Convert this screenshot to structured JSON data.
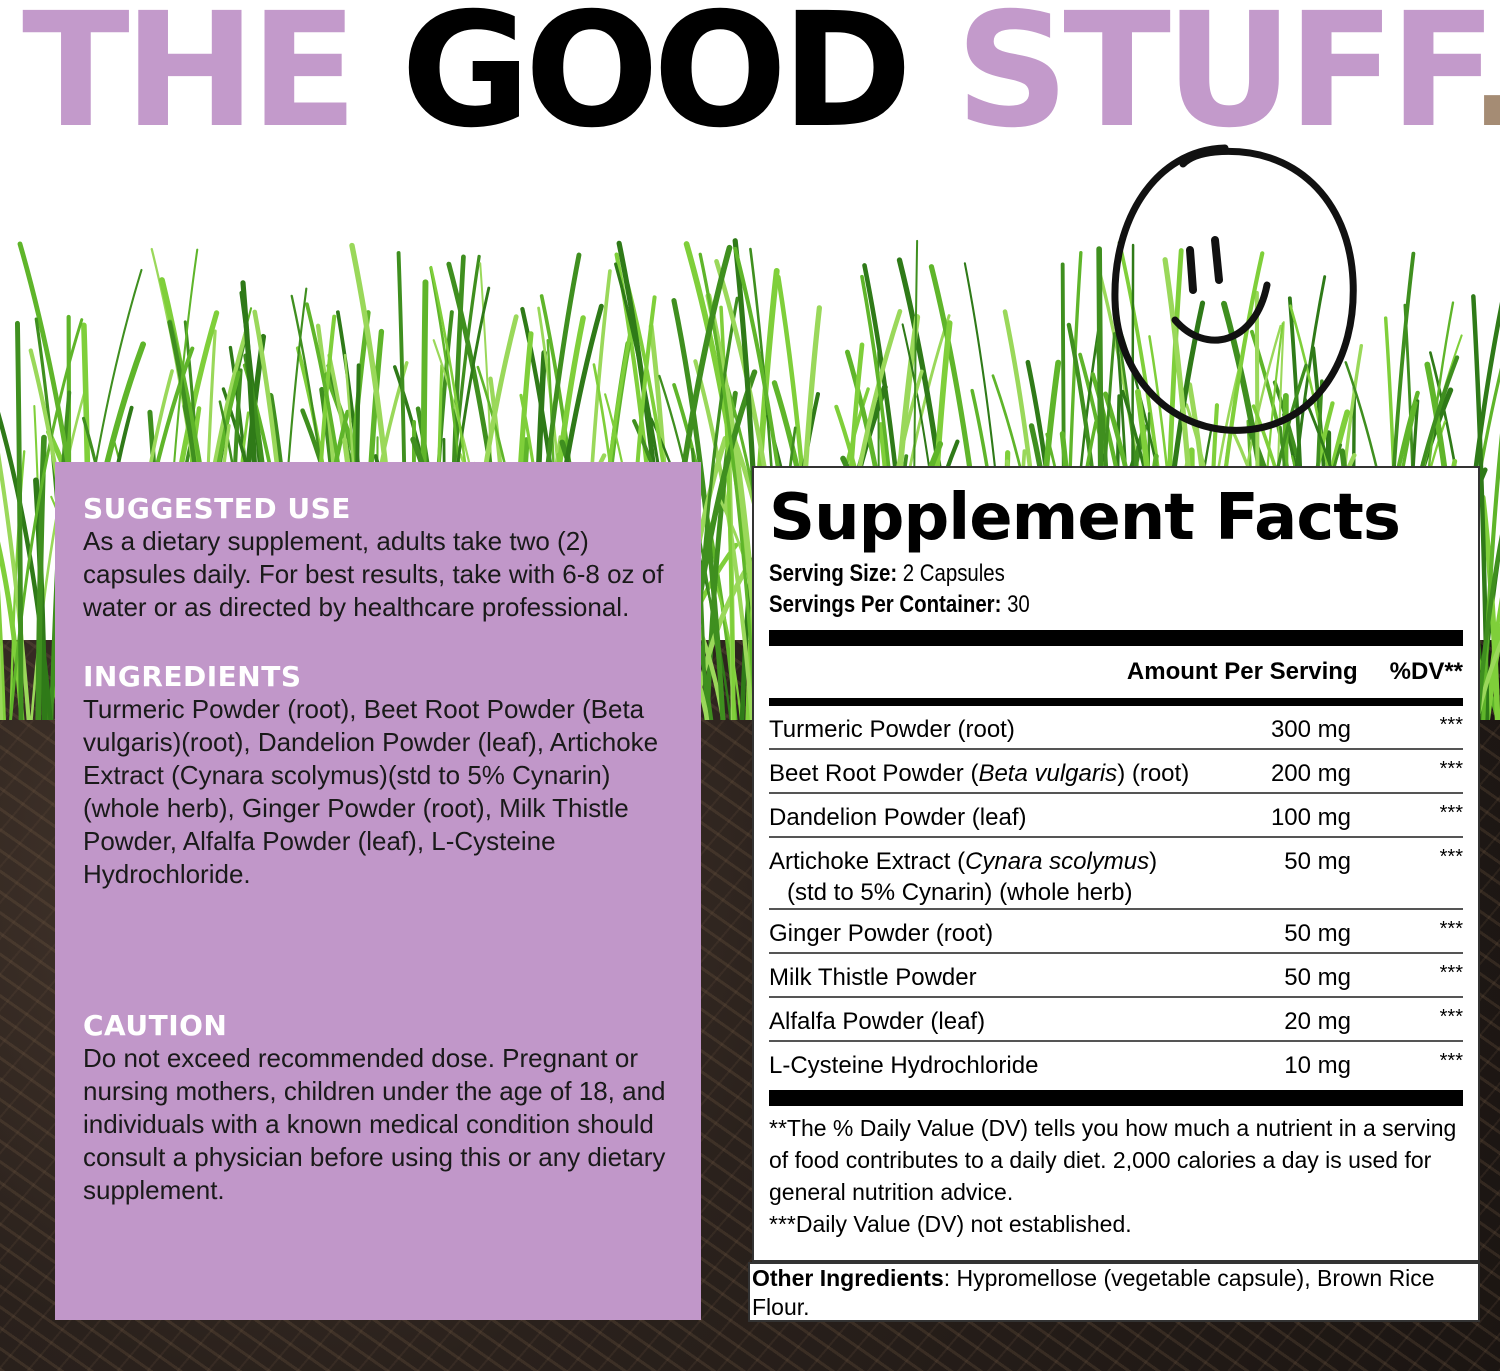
{
  "headline": {
    "part1": "THE ",
    "part2": "GOOD ",
    "part3": "STUFF",
    "dot": ".",
    "colors": {
      "purple": "#c39acb",
      "black": "#000000",
      "dot": "#a58c74"
    }
  },
  "decor": {
    "smiley_icon": "hand-drawn-smiley",
    "background": "grass-and-soil"
  },
  "left_panel": {
    "color": "#c197c9",
    "suggested_use": {
      "heading": "SUGGESTED USE",
      "text": "As a dietary supplement, adults take two (2) capsules daily. For best results, take with 6-8 oz of water or as directed by healthcare professional."
    },
    "ingredients": {
      "heading": "INGREDIENTS",
      "text": "Turmeric Powder (root), Beet Root Powder (Beta vulgaris)(root), Dandelion Powder (leaf), Artichoke Extract (Cynara scolymus)(std to 5% Cynarin)(whole herb), Ginger Powder (root), Milk Thistle Powder, Alfalfa Powder (leaf), L-Cysteine Hydrochloride."
    },
    "caution": {
      "heading": "CAUTION",
      "text": "Do not exceed recommended dose. Pregnant or nursing mothers, children under the age of 18, and individuals with a known medical condition should consult a physician before using this or any dietary supplement."
    }
  },
  "facts": {
    "title": "Supplement Facts",
    "serving_size_label": "Serving Size:",
    "serving_size": " 2 Capsules",
    "servings_label": "Servings Per Container:",
    "servings": " 30",
    "col_amount": "Amount Per Serving",
    "col_dv": "%DV**",
    "rows": [
      {
        "name": "Turmeric Powder (root)",
        "amount": "300 mg",
        "dv": "***"
      },
      {
        "name": "Beet Root Powder (",
        "italic": "Beta vulgaris",
        "name_after": ") (root)",
        "amount": "200 mg",
        "dv": "***"
      },
      {
        "name": "Dandelion Powder (leaf)",
        "amount": "100 mg",
        "dv": "***"
      },
      {
        "name": "Artichoke Extract (",
        "italic": "Cynara scolymus",
        "name_after": ")",
        "sub": "(std to 5% Cynarin) (whole herb)",
        "amount": "50 mg",
        "dv": "***"
      },
      {
        "name": "Ginger Powder (root)",
        "amount": "50 mg",
        "dv": "***"
      },
      {
        "name": "Milk Thistle Powder",
        "amount": "50 mg",
        "dv": "***"
      },
      {
        "name": "Alfalfa Powder (leaf)",
        "amount": "20 mg",
        "dv": "***"
      },
      {
        "name": "L-Cysteine Hydrochloride",
        "amount": "10 mg",
        "dv": "***"
      }
    ],
    "footnote1": "**The % Daily Value (DV) tells you how much a nutrient in a serving of food contributes to a daily diet. 2,000 calories a day is used for general nutrition advice.",
    "footnote2": "***Daily Value (DV) not established.",
    "other_label": "Other Ingredients",
    "other_text": ": Hypromellose (vegetable capsule), Brown Rice Flour."
  }
}
